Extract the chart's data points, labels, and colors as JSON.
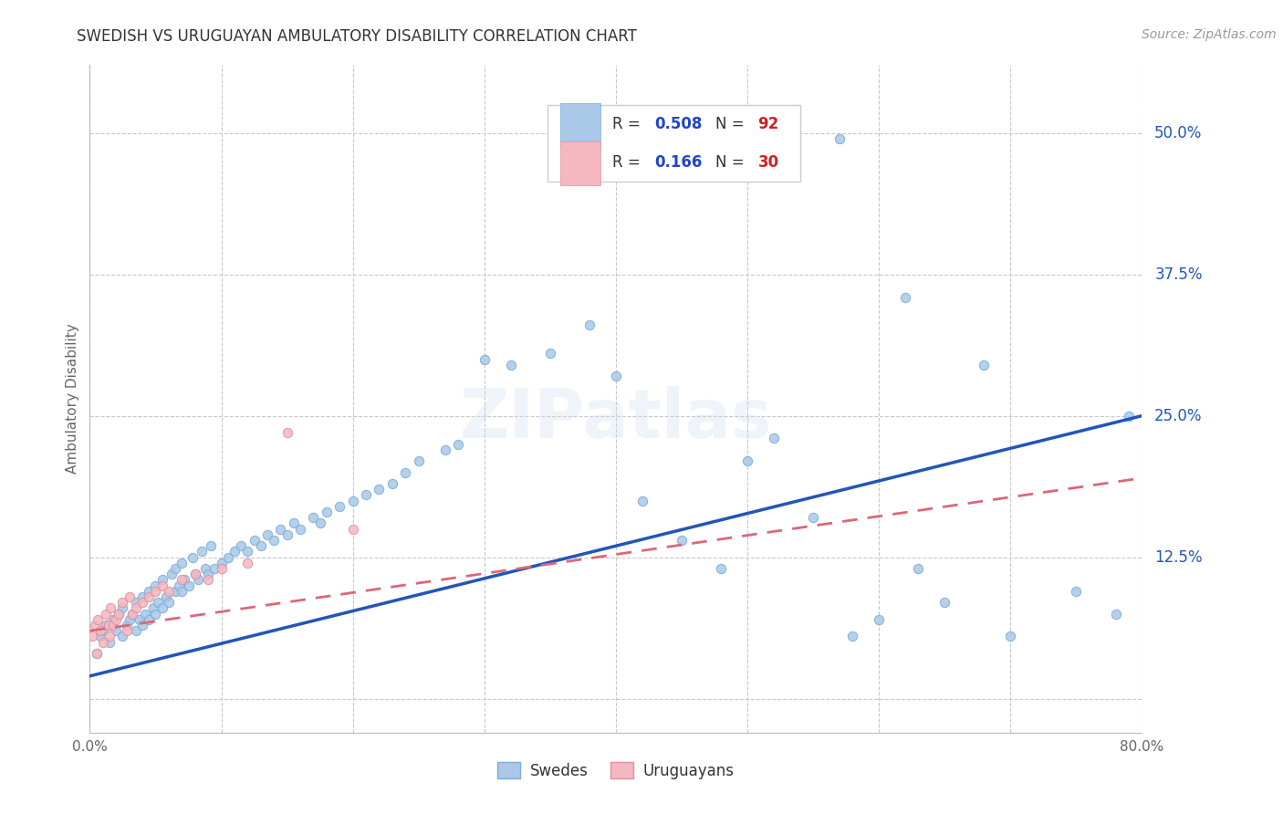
{
  "title": "SWEDISH VS URUGUAYAN AMBULATORY DISABILITY CORRELATION CHART",
  "source": "Source: ZipAtlas.com",
  "ylabel": "Ambulatory Disability",
  "xlim": [
    0.0,
    0.8
  ],
  "ylim": [
    -0.03,
    0.56
  ],
  "yticks": [
    0.0,
    0.125,
    0.25,
    0.375,
    0.5
  ],
  "yticklabels": [
    "",
    "12.5%",
    "25.0%",
    "37.5%",
    "50.0%"
  ],
  "grid_color": "#c8c8c8",
  "background_color": "#ffffff",
  "title_color": "#333333",
  "source_color": "#999999",
  "blue_color": "#aac8e8",
  "blue_dot_edge": "#7aadd4",
  "pink_color": "#f5b8c0",
  "pink_dot_edge": "#e090a0",
  "blue_line_color": "#2255bb",
  "pink_line_color": "#dd6677",
  "legend_R_color": "#2244cc",
  "legend_N_color": "#cc2222",
  "watermark": "ZIPatlas",
  "blue_line_x0": 0.0,
  "blue_line_y0": 0.02,
  "blue_line_x1": 0.8,
  "blue_line_y1": 0.25,
  "pink_line_x0": 0.0,
  "pink_line_y0": 0.06,
  "pink_line_x1": 0.8,
  "pink_line_y1": 0.195,
  "swedes_x": [
    0.005,
    0.008,
    0.01,
    0.012,
    0.015,
    0.018,
    0.02,
    0.022,
    0.025,
    0.025,
    0.028,
    0.03,
    0.032,
    0.035,
    0.035,
    0.038,
    0.04,
    0.04,
    0.042,
    0.045,
    0.045,
    0.048,
    0.05,
    0.05,
    0.052,
    0.055,
    0.055,
    0.058,
    0.06,
    0.062,
    0.065,
    0.065,
    0.068,
    0.07,
    0.07,
    0.072,
    0.075,
    0.078,
    0.08,
    0.082,
    0.085,
    0.088,
    0.09,
    0.092,
    0.095,
    0.1,
    0.105,
    0.11,
    0.115,
    0.12,
    0.125,
    0.13,
    0.135,
    0.14,
    0.145,
    0.15,
    0.155,
    0.16,
    0.17,
    0.175,
    0.18,
    0.19,
    0.2,
    0.21,
    0.22,
    0.23,
    0.24,
    0.25,
    0.27,
    0.28,
    0.3,
    0.32,
    0.35,
    0.38,
    0.4,
    0.42,
    0.45,
    0.48,
    0.5,
    0.52,
    0.55,
    0.57,
    0.58,
    0.6,
    0.62,
    0.63,
    0.65,
    0.68,
    0.7,
    0.75,
    0.78,
    0.79
  ],
  "swedes_y": [
    0.04,
    0.055,
    0.06,
    0.065,
    0.05,
    0.07,
    0.06,
    0.075,
    0.055,
    0.08,
    0.065,
    0.07,
    0.075,
    0.06,
    0.085,
    0.07,
    0.065,
    0.09,
    0.075,
    0.07,
    0.095,
    0.08,
    0.075,
    0.1,
    0.085,
    0.08,
    0.105,
    0.09,
    0.085,
    0.11,
    0.095,
    0.115,
    0.1,
    0.095,
    0.12,
    0.105,
    0.1,
    0.125,
    0.11,
    0.105,
    0.13,
    0.115,
    0.11,
    0.135,
    0.115,
    0.12,
    0.125,
    0.13,
    0.135,
    0.13,
    0.14,
    0.135,
    0.145,
    0.14,
    0.15,
    0.145,
    0.155,
    0.15,
    0.16,
    0.155,
    0.165,
    0.17,
    0.175,
    0.18,
    0.185,
    0.19,
    0.2,
    0.21,
    0.22,
    0.225,
    0.3,
    0.295,
    0.305,
    0.33,
    0.285,
    0.175,
    0.14,
    0.115,
    0.21,
    0.23,
    0.16,
    0.495,
    0.055,
    0.07,
    0.355,
    0.115,
    0.085,
    0.295,
    0.055,
    0.095,
    0.075,
    0.25
  ],
  "uruguayans_x": [
    0.002,
    0.004,
    0.005,
    0.006,
    0.008,
    0.01,
    0.012,
    0.014,
    0.015,
    0.016,
    0.018,
    0.02,
    0.022,
    0.025,
    0.028,
    0.03,
    0.032,
    0.035,
    0.04,
    0.045,
    0.05,
    0.055,
    0.06,
    0.07,
    0.08,
    0.09,
    0.1,
    0.12,
    0.15,
    0.2
  ],
  "uruguayans_y": [
    0.055,
    0.065,
    0.04,
    0.07,
    0.06,
    0.05,
    0.075,
    0.065,
    0.055,
    0.08,
    0.065,
    0.07,
    0.075,
    0.085,
    0.06,
    0.09,
    0.075,
    0.08,
    0.085,
    0.09,
    0.095,
    0.1,
    0.095,
    0.105,
    0.11,
    0.105,
    0.115,
    0.12,
    0.235,
    0.15
  ]
}
